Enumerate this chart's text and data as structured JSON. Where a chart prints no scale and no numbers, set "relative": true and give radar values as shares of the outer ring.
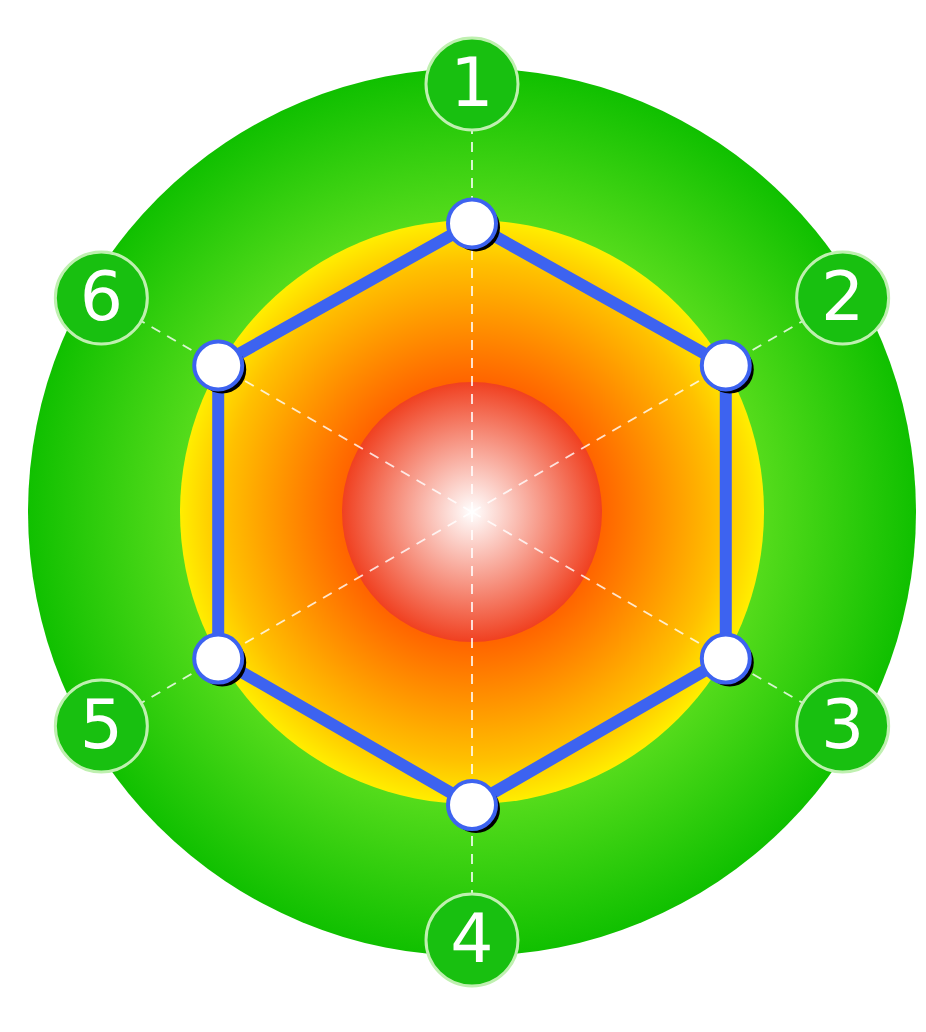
{
  "chart_data": {
    "type": "radar",
    "relative": true,
    "categories": [
      "1",
      "2",
      "3",
      "4",
      "5",
      "6"
    ],
    "series": [
      {
        "color": "#3d63f0",
        "values": [
          0.65,
          0.66,
          0.66,
          0.66,
          0.66,
          0.66
        ]
      }
    ],
    "grid": true,
    "marker": "circle"
  }
}
